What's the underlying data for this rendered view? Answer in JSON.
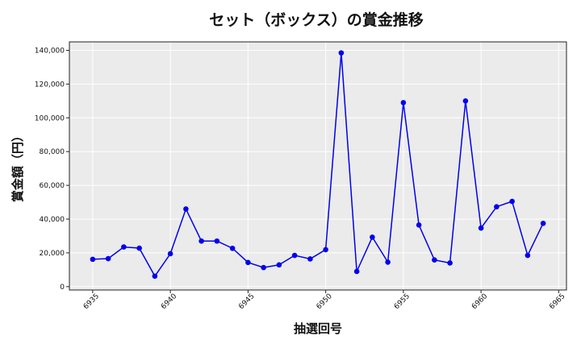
{
  "chart_data": {
    "type": "line",
    "title": "セット（ボックス）の賞金推移",
    "xlabel": "抽選回号",
    "ylabel": "賞金額（円）",
    "xlim": [
      6933.5,
      6965.5
    ],
    "ylim": [
      -2000,
      145000
    ],
    "x_ticks": [
      6935,
      6940,
      6945,
      6950,
      6955,
      6960,
      6965
    ],
    "x_tick_labels": [
      "6935",
      "6940",
      "6945",
      "6950",
      "6955",
      "6960",
      "6965"
    ],
    "y_ticks": [
      0,
      20000,
      40000,
      60000,
      80000,
      100000,
      120000,
      140000
    ],
    "y_tick_labels": [
      "0",
      "20,000",
      "40,000",
      "60,000",
      "80,000",
      "100,000",
      "120,000",
      "140,000"
    ],
    "grid": true,
    "series": [
      {
        "color": "#0000ee",
        "x": [
          6935,
          6936,
          6937,
          6938,
          6939,
          6940,
          6941,
          6942,
          6943,
          6944,
          6945,
          6946,
          6947,
          6948,
          6949,
          6950,
          6951,
          6952,
          6953,
          6954,
          6955,
          6956,
          6957,
          6958,
          6959,
          6960,
          6961,
          6962,
          6963,
          6964
        ],
        "y": [
          16200,
          16600,
          23500,
          22800,
          6200,
          19500,
          46000,
          27000,
          27000,
          22700,
          14300,
          11300,
          12900,
          18500,
          16400,
          21900,
          138500,
          9000,
          29300,
          14500,
          109000,
          36500,
          15800,
          14000,
          110000,
          34700,
          47300,
          50500,
          18500,
          37500
        ]
      }
    ],
    "colors": {
      "plot_background": "#ebebeb",
      "grid": "#ffffff",
      "line": "#0000ee"
    }
  }
}
